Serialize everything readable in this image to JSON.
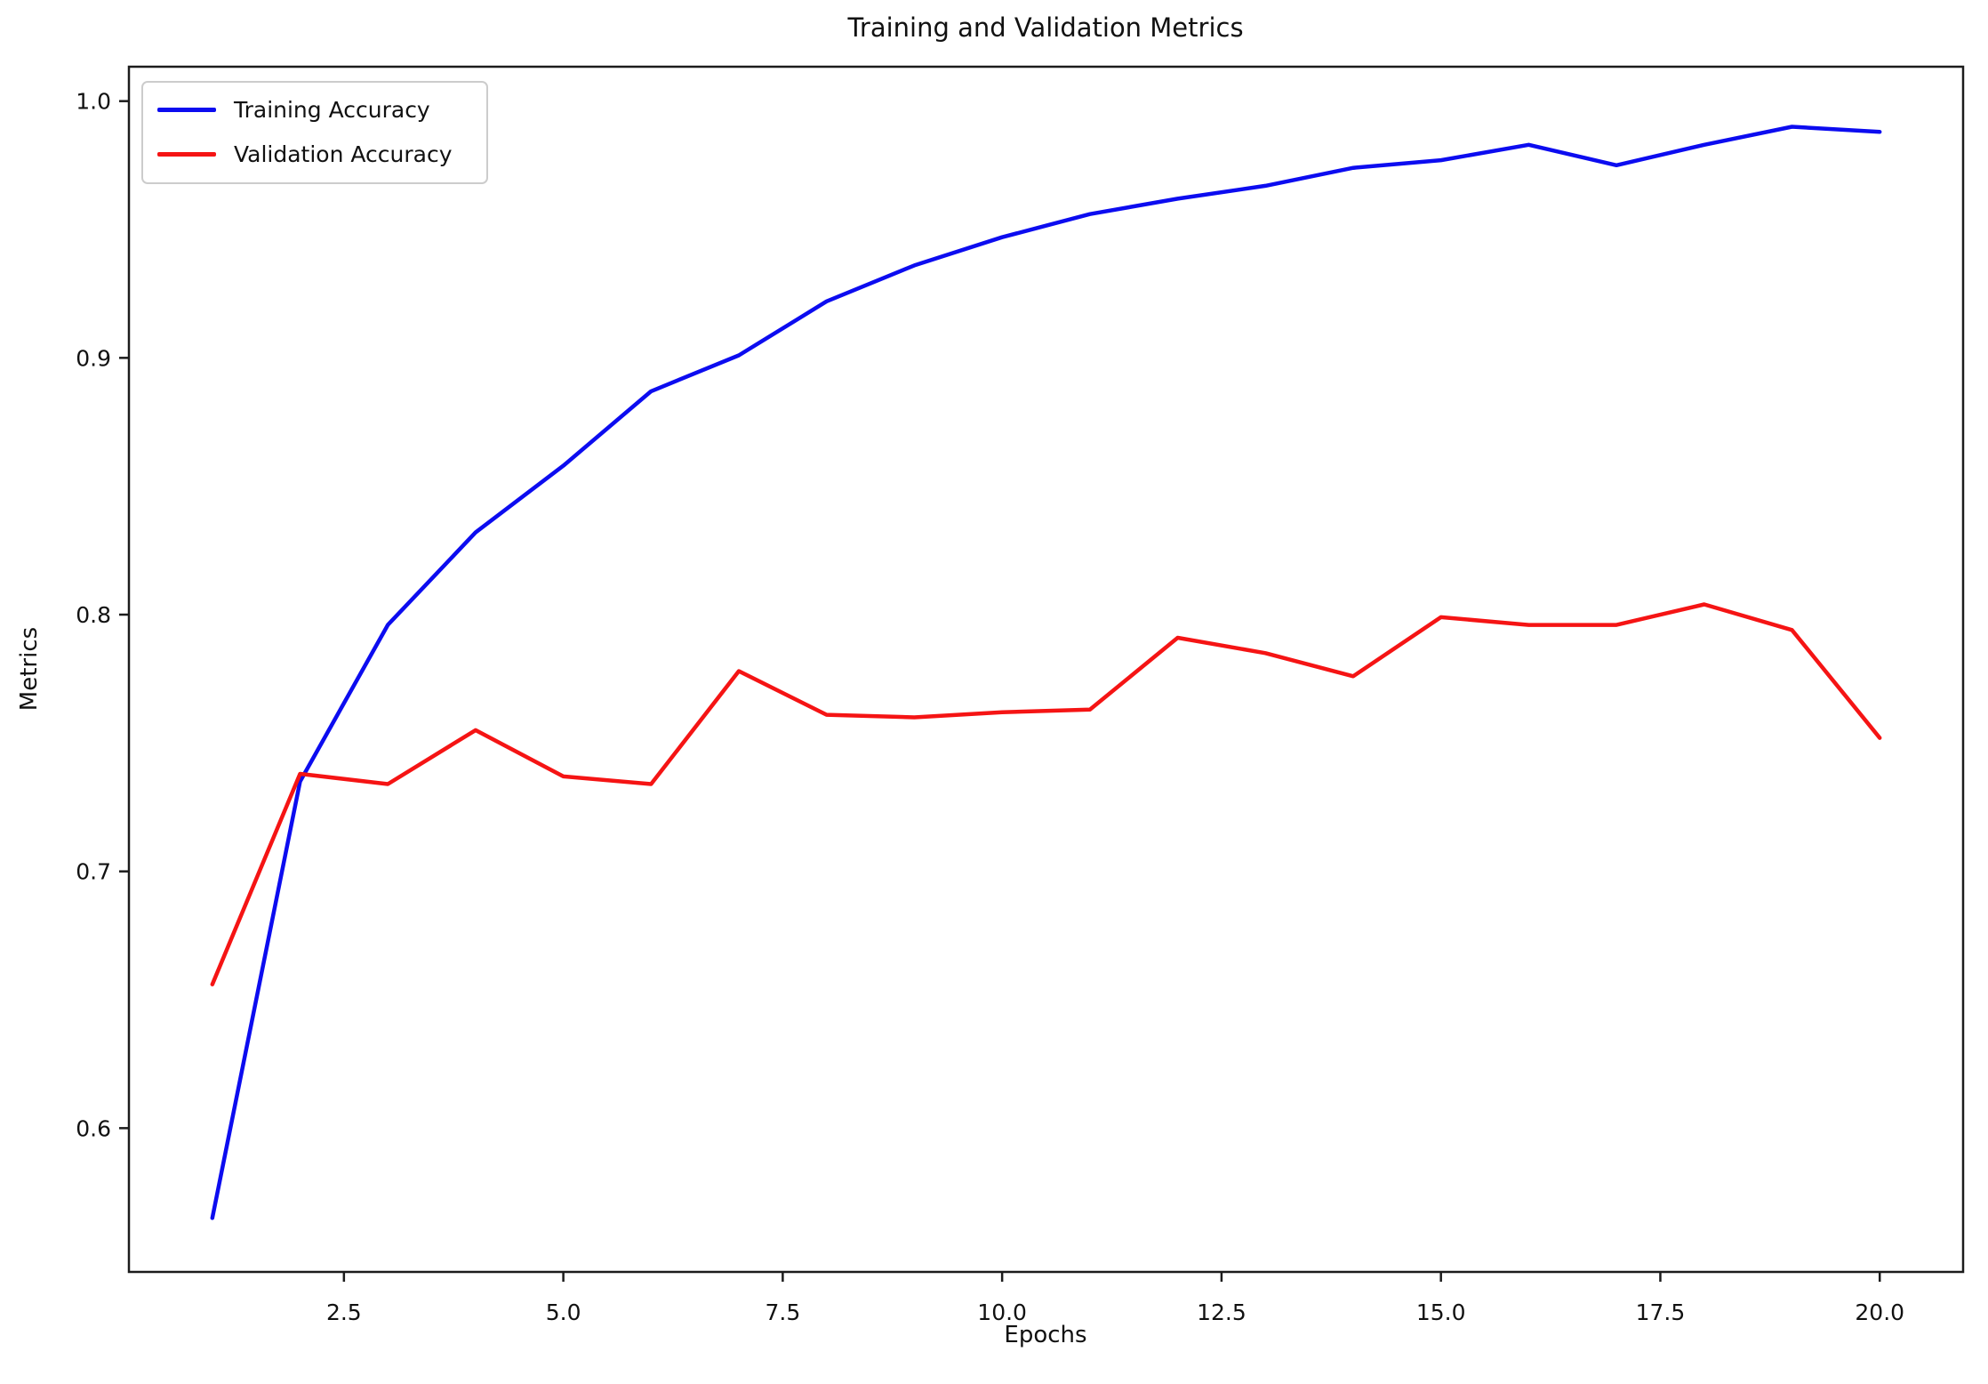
{
  "figure": {
    "title": "Training and Validation Metrics",
    "x_label": "Epochs",
    "y_label": "Metrics"
  },
  "legend": {
    "position": "upper left",
    "entries": [
      {
        "label": "Training Accuracy",
        "color": "#0c0cf0"
      },
      {
        "label": "Validation Accuracy",
        "color": "#f51414"
      }
    ]
  },
  "chart_data": {
    "type": "line",
    "title": "Training and Validation Metrics",
    "xlabel": "Epochs",
    "ylabel": "Metrics",
    "grid": false,
    "legend_position": "upper left",
    "axis_color": "#1c1c1c",
    "tick_text_color": "#111111",
    "xlim": [
      0.05,
      20.95
    ],
    "ylim": [
      0.544,
      1.0134
    ],
    "x_ticks": [
      2.5,
      5.0,
      7.5,
      10.0,
      12.5,
      15.0,
      17.5,
      20.0
    ],
    "x_tick_labels": [
      "2.5",
      "5.0",
      "7.5",
      "10.0",
      "12.5",
      "15.0",
      "17.5",
      "20.0"
    ],
    "y_ticks": [
      0.6,
      0.7,
      0.8,
      0.9,
      1.0
    ],
    "y_tick_labels": [
      "0.6",
      "0.7",
      "0.8",
      "0.9",
      "1.0"
    ],
    "x": [
      1,
      2,
      3,
      4,
      5,
      6,
      7,
      8,
      9,
      10,
      11,
      12,
      13,
      14,
      15,
      16,
      17,
      18,
      19,
      20
    ],
    "series": [
      {
        "name": "Training Accuracy",
        "color": "#0c0cf0",
        "values": [
          0.565,
          0.735,
          0.796,
          0.832,
          0.858,
          0.887,
          0.901,
          0.922,
          0.936,
          0.947,
          0.956,
          0.962,
          0.967,
          0.974,
          0.977,
          0.983,
          0.975,
          0.983,
          0.99,
          0.988
        ]
      },
      {
        "name": "Validation Accuracy",
        "color": "#f51414",
        "values": [
          0.656,
          0.738,
          0.734,
          0.755,
          0.737,
          0.734,
          0.778,
          0.761,
          0.76,
          0.762,
          0.763,
          0.791,
          0.785,
          0.776,
          0.799,
          0.796,
          0.796,
          0.804,
          0.794,
          0.752
        ]
      }
    ]
  }
}
